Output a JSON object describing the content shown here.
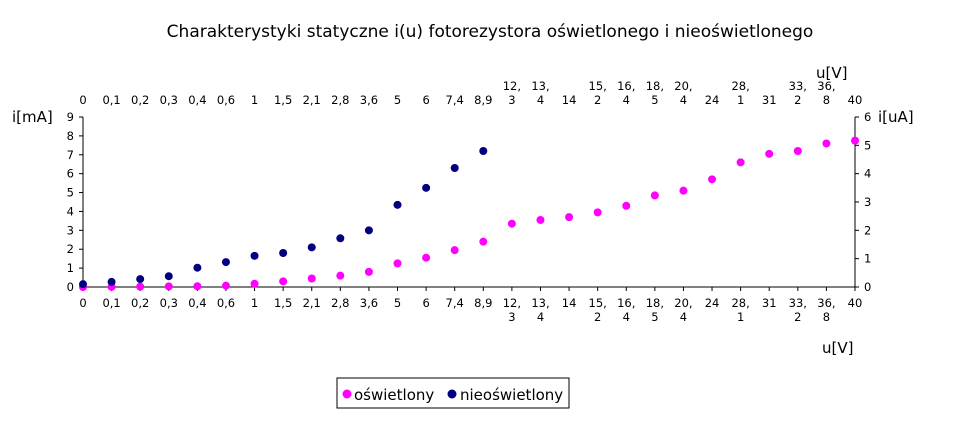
{
  "chart_data": {
    "type": "scatter",
    "title": "Charakterystyki statyczne i(u) fotorezystora oświetlonego i nieoświetlonego",
    "x_categories": [
      [
        "0"
      ],
      [
        "0,1"
      ],
      [
        "0,2"
      ],
      [
        "0,3"
      ],
      [
        "0,4"
      ],
      [
        "0,6"
      ],
      [
        "1"
      ],
      [
        "1,5"
      ],
      [
        "2,1"
      ],
      [
        "2,8"
      ],
      [
        "3,6"
      ],
      [
        "5"
      ],
      [
        "6"
      ],
      [
        "7,4"
      ],
      [
        "8,9"
      ],
      [
        "12,",
        "3"
      ],
      [
        "13,",
        "4"
      ],
      [
        "14"
      ],
      [
        "15,",
        "2"
      ],
      [
        "16,",
        "4"
      ],
      [
        "18,",
        "5"
      ],
      [
        "20,",
        "4"
      ],
      [
        "24"
      ],
      [
        "28,",
        "1"
      ],
      [
        "31"
      ],
      [
        "33,",
        "2"
      ],
      [
        "36,",
        "8"
      ],
      [
        "40"
      ]
    ],
    "xlabel_bottom": "u[V]",
    "xlabel_top": "u[V]",
    "ylabel_left": "i[mA]",
    "ylabel_right": "i[uA]",
    "ylim_left": [
      0,
      9
    ],
    "ylim_right": [
      0,
      6
    ],
    "yticks_left": [
      0,
      1,
      2,
      3,
      4,
      5,
      6,
      7,
      8,
      9
    ],
    "yticks_right": [
      0,
      1,
      2,
      3,
      4,
      5,
      6
    ],
    "series": [
      {
        "name": "oświetlony",
        "axis": "left",
        "unit": "mA",
        "color": "#ff00ff",
        "values": [
          0.0,
          0.01,
          0.02,
          0.03,
          0.04,
          0.07,
          0.17,
          0.3,
          0.45,
          0.6,
          0.8,
          1.25,
          1.55,
          1.95,
          2.4,
          3.35,
          3.55,
          3.7,
          3.95,
          4.3,
          4.85,
          5.1,
          5.7,
          6.6,
          7.05,
          7.2,
          7.6,
          7.75
        ]
      },
      {
        "name": "nieoświetlony",
        "axis": "right",
        "unit": "uA",
        "color": "#000080",
        "values": [
          0.1,
          0.18,
          0.28,
          0.38,
          0.68,
          0.88,
          1.1,
          1.2,
          1.4,
          1.72,
          2.0,
          2.9,
          3.5,
          4.2,
          4.8
        ]
      }
    ],
    "legend_position": "bottom-center",
    "grid": false
  }
}
